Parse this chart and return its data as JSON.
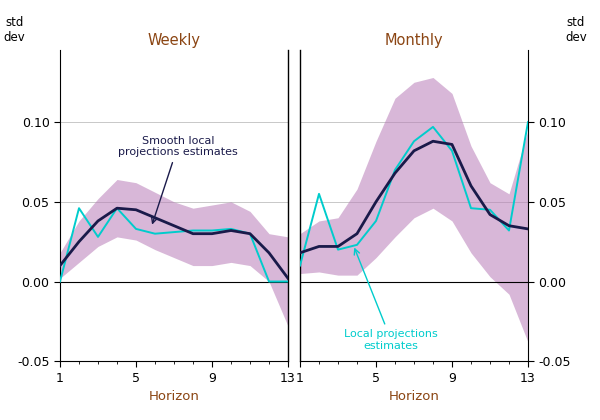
{
  "weekly_x": [
    1,
    2,
    3,
    4,
    5,
    6,
    7,
    8,
    9,
    10,
    11,
    12,
    13
  ],
  "weekly_smooth": [
    0.01,
    0.025,
    0.038,
    0.046,
    0.045,
    0.04,
    0.035,
    0.03,
    0.03,
    0.032,
    0.03,
    0.018,
    0.002
  ],
  "weekly_upper": [
    0.018,
    0.038,
    0.052,
    0.064,
    0.062,
    0.056,
    0.05,
    0.046,
    0.048,
    0.05,
    0.044,
    0.03,
    0.028
  ],
  "weekly_lower": [
    0.002,
    0.012,
    0.022,
    0.028,
    0.026,
    0.02,
    0.015,
    0.01,
    0.01,
    0.012,
    0.01,
    0.0,
    -0.028
  ],
  "weekly_lp": [
    0.0,
    0.046,
    0.028,
    0.046,
    0.033,
    0.03,
    0.031,
    0.032,
    0.032,
    0.033,
    0.03,
    0.0,
    0.0
  ],
  "monthly_x": [
    1,
    2,
    3,
    4,
    5,
    6,
    7,
    8,
    9,
    10,
    11,
    12,
    13
  ],
  "monthly_smooth": [
    0.018,
    0.022,
    0.022,
    0.03,
    0.05,
    0.068,
    0.082,
    0.088,
    0.086,
    0.06,
    0.042,
    0.035,
    0.033
  ],
  "monthly_upper": [
    0.03,
    0.038,
    0.04,
    0.058,
    0.088,
    0.115,
    0.125,
    0.128,
    0.118,
    0.085,
    0.062,
    0.055,
    0.095
  ],
  "monthly_lower": [
    0.005,
    0.006,
    0.004,
    0.004,
    0.015,
    0.028,
    0.04,
    0.046,
    0.038,
    0.018,
    0.003,
    -0.008,
    -0.038
  ],
  "monthly_lp": [
    0.01,
    0.055,
    0.02,
    0.023,
    0.038,
    0.07,
    0.088,
    0.097,
    0.082,
    0.046,
    0.045,
    0.032,
    0.1
  ],
  "fill_color": "#b87db8",
  "fill_alpha": 0.55,
  "smooth_color": "#1a1a4a",
  "lp_color": "#00cccc",
  "title_weekly": "Weekly",
  "title_monthly": "Monthly",
  "title_color": "#8b4513",
  "xlabel": "Horizon",
  "ylim": [
    -0.05,
    0.145
  ],
  "yticks": [
    -0.05,
    0.0,
    0.05,
    0.1
  ],
  "xticks": [
    1,
    5,
    9,
    13
  ],
  "annotation_smooth": "Smooth local\nprojections estimates",
  "annotation_lp": "Local projections\nestimates",
  "annotation_color_smooth": "#1a1a4a",
  "annotation_color_lp": "#00cccc",
  "grid_color": "#c8c8c8",
  "background_color": "#ffffff"
}
